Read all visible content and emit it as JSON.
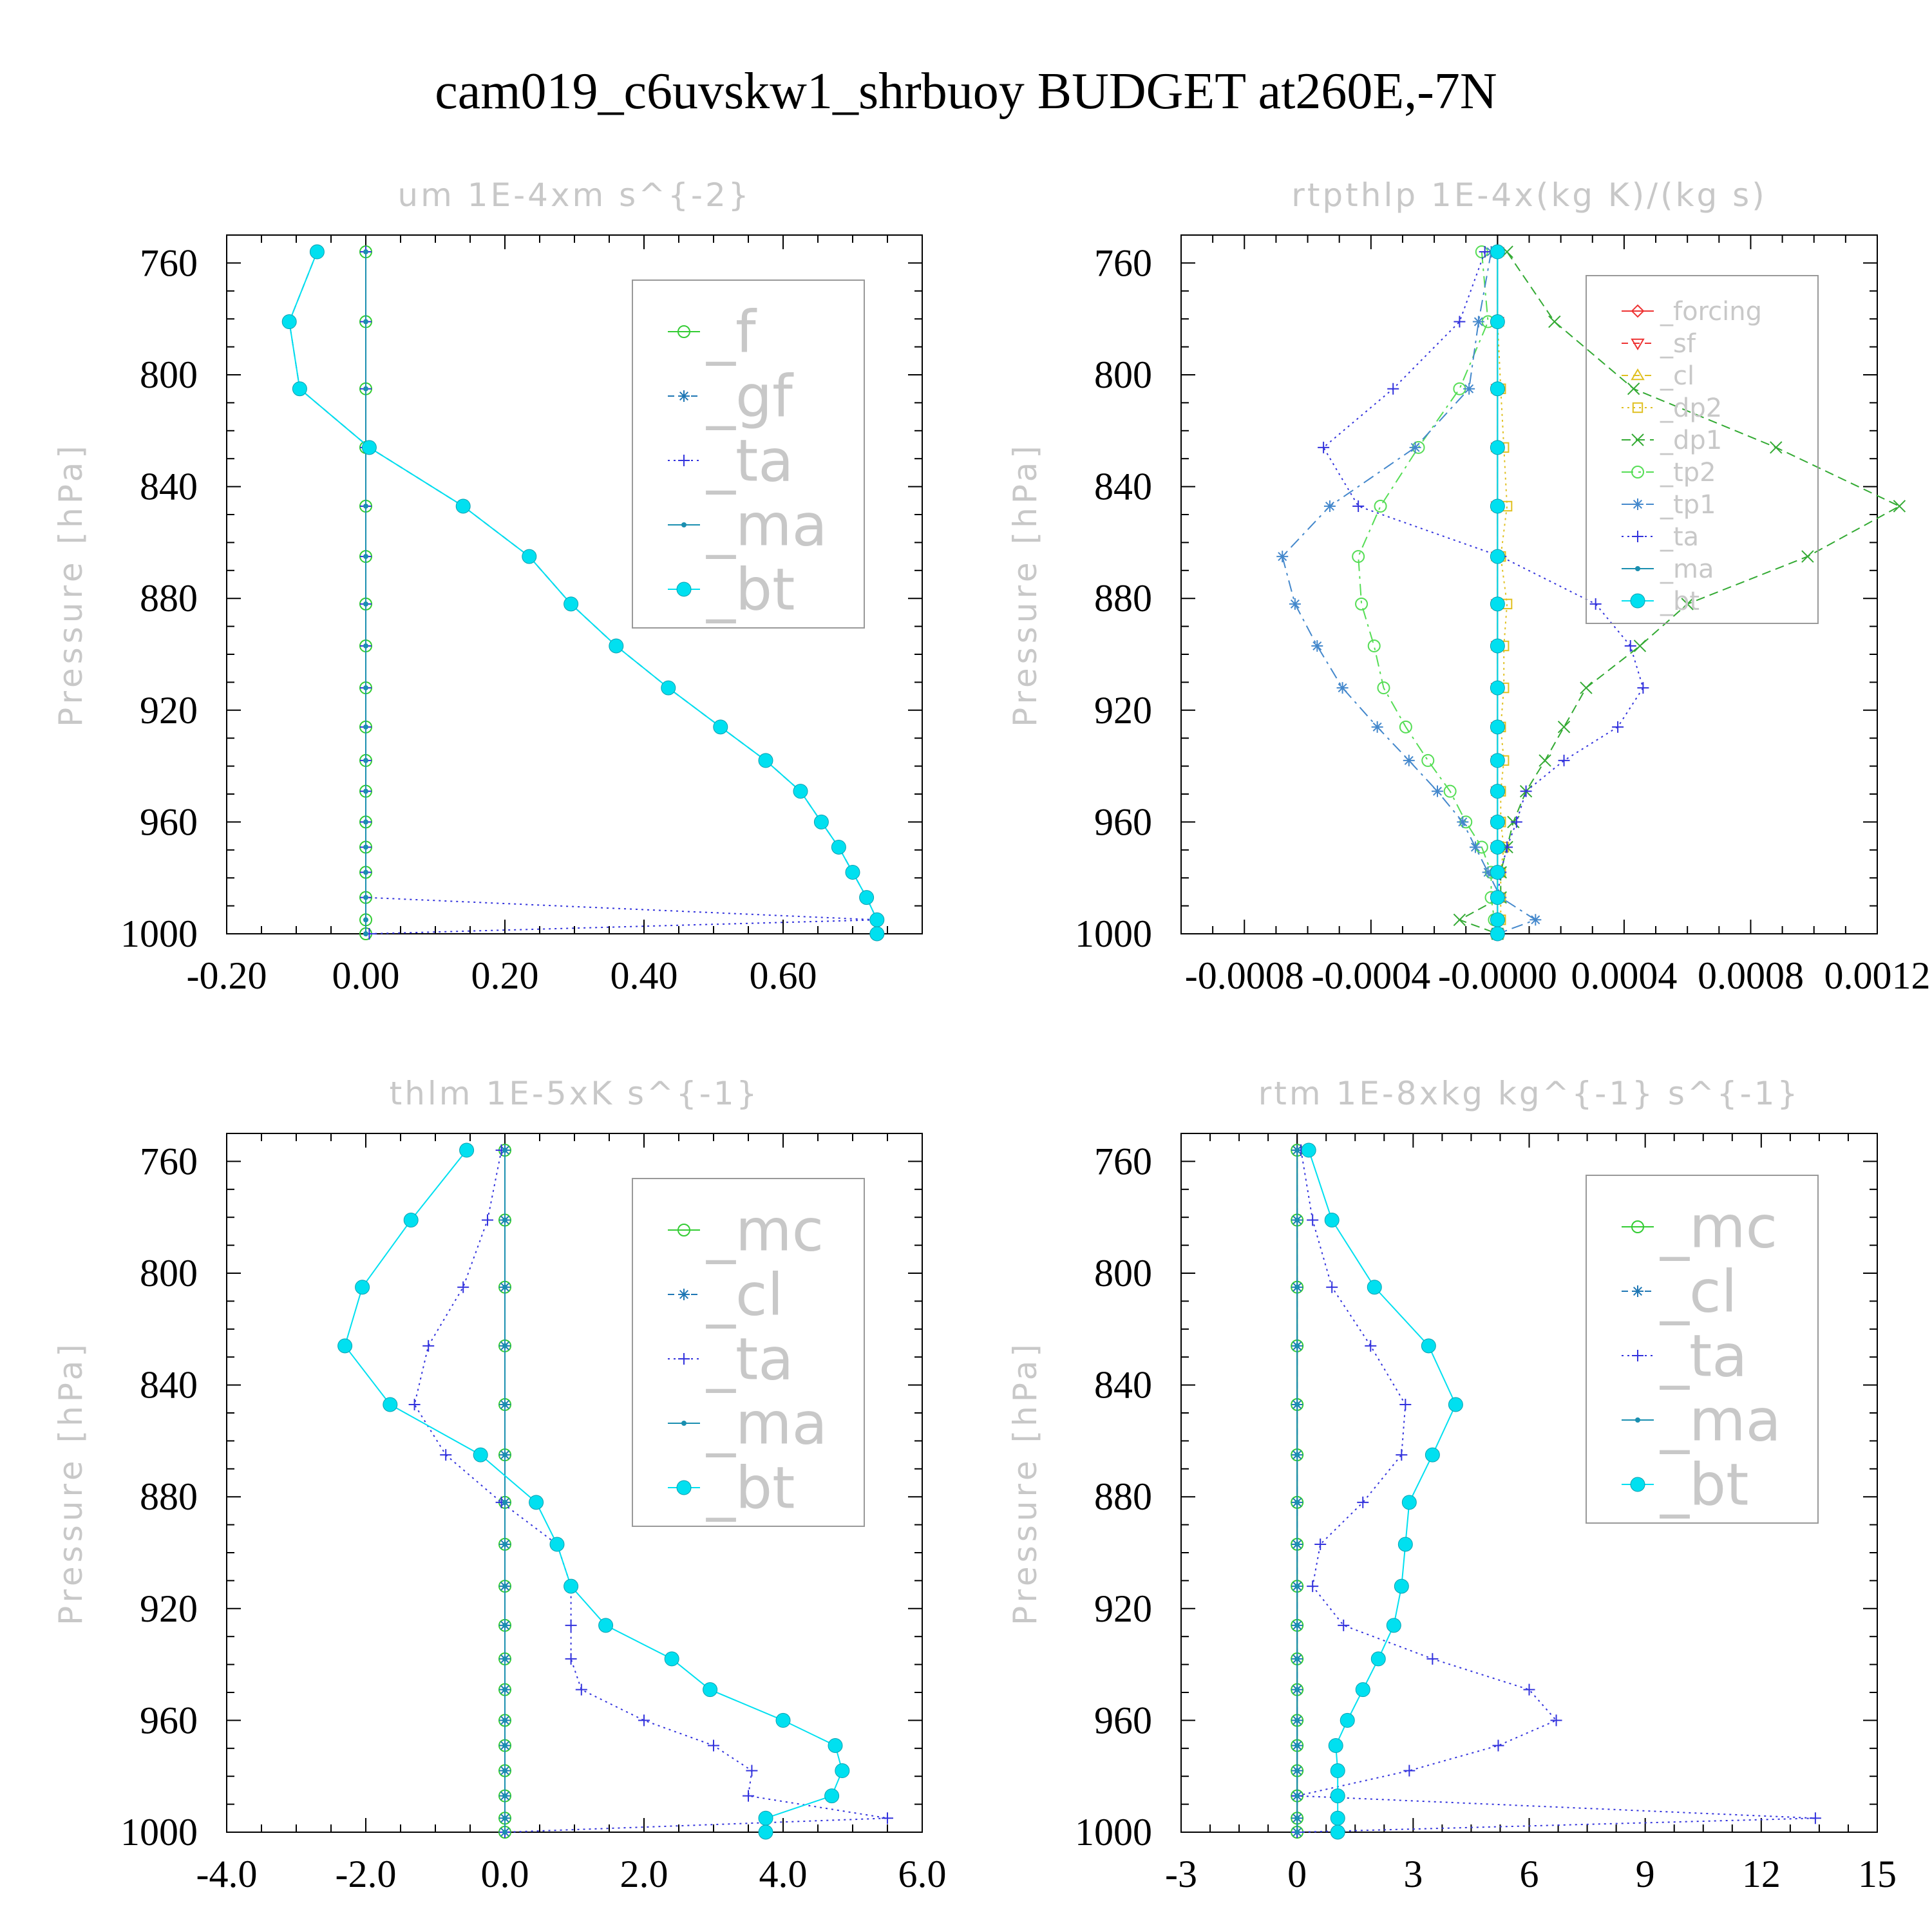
{
  "title": "cam019_c6uvskw1_shrbuoy  BUDGET at260E,-7N",
  "chart_data": [
    {
      "type": "line",
      "title": "um  1E-4xm s^{-2}",
      "ylabel": "Pressure [hPa]",
      "xlim": [
        -0.2,
        0.8
      ],
      "ylim": [
        1000,
        750
      ],
      "xticks": [
        -0.2,
        0.0,
        0.2,
        0.4,
        0.6
      ],
      "xtick_labels": [
        "-0.20",
        "0.00",
        "0.20",
        "0.40",
        "0.60"
      ],
      "yticks": [
        760,
        800,
        840,
        880,
        920,
        960,
        1000
      ],
      "ytick_labels": [
        "760",
        "800",
        "840",
        "880",
        "920",
        "960",
        "1000"
      ],
      "legend_position": "top-right",
      "legend_font_size": 90,
      "pressure": [
        756,
        781,
        805,
        826,
        847,
        865,
        882,
        897,
        912,
        926,
        938,
        949,
        960,
        969,
        978,
        987,
        995,
        1000
      ],
      "series": [
        {
          "name": "_f",
          "color": "#33cc33",
          "marker": "circle-open",
          "dash": "none",
          "values": [
            0,
            0,
            0,
            0,
            0,
            0,
            0,
            0,
            0,
            0,
            0,
            0,
            0,
            0,
            0,
            0,
            0,
            0
          ]
        },
        {
          "name": "_gf",
          "color": "#1f77b4",
          "marker": "star",
          "dash": "10,8",
          "values": [
            -0.07,
            -0.11,
            -0.095,
            0.005,
            0.14,
            0.235,
            0.295,
            0.36,
            0.435,
            0.51,
            0.575,
            0.625,
            0.655,
            0.68,
            0.7,
            0.72,
            0.735,
            0.735
          ]
        },
        {
          "name": "_ta",
          "color": "#3333dd",
          "marker": "plus",
          "dash": "3,6",
          "values": [
            0,
            0,
            0,
            0,
            0,
            0,
            0,
            0,
            0,
            0,
            0,
            0,
            0,
            0,
            0,
            0,
            0.735,
            0.005
          ]
        },
        {
          "name": "_ma",
          "color": "#1a8fb0",
          "marker": "dot",
          "dash": "none",
          "values": [
            0,
            0,
            0,
            0,
            0,
            0,
            0,
            0,
            0,
            0,
            0,
            0,
            0,
            0,
            0,
            0,
            0,
            0
          ]
        },
        {
          "name": "_bt",
          "color": "#00e0f0",
          "marker": "filled",
          "dash": "none",
          "values": [
            -0.07,
            -0.11,
            -0.095,
            0.005,
            0.14,
            0.235,
            0.295,
            0.36,
            0.435,
            0.51,
            0.575,
            0.625,
            0.655,
            0.68,
            0.7,
            0.72,
            0.735,
            0.735
          ]
        }
      ]
    },
    {
      "type": "line",
      "title": "rtpthlp  1E-4x(kg K)/(kg s)",
      "ylabel": "Pressure [hPa]",
      "xlim": [
        -0.001,
        0.0012
      ],
      "ylim": [
        1000,
        750
      ],
      "xticks": [
        -0.0008,
        -0.0004,
        0.0,
        0.0004,
        0.0008,
        0.0012
      ],
      "xtick_labels": [
        "-0.0008",
        "-0.0004",
        "-0.0000",
        "0.0004",
        "0.0008",
        "0.0012"
      ],
      "yticks": [
        760,
        800,
        840,
        880,
        920,
        960,
        1000
      ],
      "ytick_labels": [
        "760",
        "800",
        "840",
        "880",
        "920",
        "960",
        "1000"
      ],
      "legend_position": "top-right",
      "legend_font_size": 40,
      "pressure": [
        756,
        781,
        805,
        826,
        847,
        865,
        882,
        897,
        912,
        926,
        938,
        949,
        960,
        969,
        978,
        987,
        995,
        1000
      ],
      "series": [
        {
          "name": "_forcing",
          "color": "#ee3333",
          "marker": "diamond-open",
          "dash": "none",
          "values": [
            0,
            0,
            0,
            0,
            0,
            0,
            0,
            0,
            0,
            0,
            0,
            0,
            0,
            0,
            0,
            0,
            0,
            0
          ]
        },
        {
          "name": "_sf",
          "color": "#ee3333",
          "marker": "triangle-down",
          "dash": "10,8",
          "values": [
            0,
            0,
            0,
            0,
            0,
            0,
            0,
            0,
            0,
            0,
            0,
            0,
            0,
            0,
            0,
            0,
            0,
            0
          ]
        },
        {
          "name": "_cl",
          "color": "#e0c020",
          "marker": "triangle-up",
          "dash": "10,8",
          "values": [
            0,
            0,
            0,
            0,
            0,
            0,
            0,
            0,
            0,
            0,
            0,
            0,
            0,
            0,
            0,
            0,
            0,
            0
          ]
        },
        {
          "name": "_dp2",
          "color": "#e0c020",
          "marker": "square-open",
          "dash": "3,6",
          "values": [
            0,
            0,
            1e-05,
            2e-05,
            3e-05,
            1e-05,
            3e-05,
            2e-05,
            2e-05,
            1e-05,
            2e-05,
            1e-05,
            1e-05,
            2e-05,
            1e-05,
            1e-05,
            1e-05,
            0
          ]
        },
        {
          "name": "_dp1",
          "color": "#33aa33",
          "marker": "x",
          "dash": "14,8",
          "values": [
            3e-05,
            0.00018,
            0.00043,
            0.00088,
            0.00127,
            0.00098,
            0.0006,
            0.00045,
            0.00028,
            0.00021,
            0.00015,
            9e-05,
            5e-05,
            3e-05,
            1e-05,
            1e-05,
            -0.00012,
            0
          ]
        },
        {
          "name": "_tp2",
          "color": "#55dd55",
          "marker": "circle-open",
          "dash": "18,8,4,8",
          "values": [
            -5e-05,
            -3e-05,
            -0.00012,
            -0.00025,
            -0.00037,
            -0.00044,
            -0.00043,
            -0.00039,
            -0.00036,
            -0.00029,
            -0.00022,
            -0.00015,
            -0.0001,
            -5e-05,
            -2e-05,
            -2e-05,
            -1e-05,
            0
          ]
        },
        {
          "name": "_tp1",
          "color": "#4488cc",
          "marker": "star",
          "dash": "18,8,4,8",
          "values": [
            -2e-05,
            -6e-05,
            -9e-05,
            -0.00026,
            -0.00053,
            -0.00068,
            -0.00064,
            -0.00057,
            -0.00049,
            -0.00038,
            -0.00028,
            -0.00019,
            -0.00011,
            -7e-05,
            -3e-05,
            1e-05,
            0.00012,
            0
          ]
        },
        {
          "name": "_ta",
          "color": "#3333dd",
          "marker": "plus",
          "dash": "3,6",
          "values": [
            -4e-05,
            -0.00012,
            -0.00033,
            -0.00055,
            -0.00044,
            1e-05,
            0.00031,
            0.00042,
            0.00046,
            0.00038,
            0.00021,
            9e-05,
            6e-05,
            3e-05,
            1e-05,
            0,
            0,
            0
          ]
        },
        {
          "name": "_ma",
          "color": "#1a8fb0",
          "marker": "dot",
          "dash": "none",
          "values": [
            0,
            0,
            0,
            0,
            0,
            0,
            0,
            0,
            0,
            0,
            0,
            0,
            0,
            0,
            0,
            0,
            0,
            0
          ]
        },
        {
          "name": "_bt",
          "color": "#00e0f0",
          "marker": "filled",
          "dash": "none",
          "values": [
            0,
            0,
            0,
            0,
            0,
            0,
            0,
            0,
            0,
            0,
            0,
            0,
            0,
            0,
            0,
            0,
            0,
            0
          ]
        }
      ]
    },
    {
      "type": "line",
      "title": "thlm  1E-5xK s^{-1}",
      "ylabel": "Pressure [hPa]",
      "xlim": [
        -4.0,
        6.0
      ],
      "ylim": [
        1000,
        750
      ],
      "xticks": [
        -4,
        -2,
        0,
        2,
        4,
        6
      ],
      "xtick_labels": [
        "-4.0",
        "-2.0",
        "0.0",
        "2.0",
        "4.0",
        "6.0"
      ],
      "yticks": [
        760,
        800,
        840,
        880,
        920,
        960,
        1000
      ],
      "ytick_labels": [
        "760",
        "800",
        "840",
        "880",
        "920",
        "960",
        "1000"
      ],
      "legend_position": "top-right",
      "legend_font_size": 90,
      "pressure": [
        756,
        781,
        805,
        826,
        847,
        865,
        882,
        897,
        912,
        926,
        938,
        949,
        960,
        969,
        978,
        987,
        995,
        1000
      ],
      "series": [
        {
          "name": "_mc",
          "color": "#33cc33",
          "marker": "circle-open",
          "dash": "none",
          "values": [
            0,
            0,
            0,
            0,
            0,
            0,
            0,
            0,
            0,
            0,
            0,
            0,
            0,
            0,
            0,
            0,
            0,
            0
          ]
        },
        {
          "name": "_cl",
          "color": "#1f77b4",
          "marker": "star",
          "dash": "10,8",
          "values": [
            0,
            0,
            0,
            0,
            0,
            0,
            0,
            0,
            0,
            0,
            0,
            0,
            0,
            0,
            0,
            0,
            0,
            0
          ]
        },
        {
          "name": "_ta",
          "color": "#3333dd",
          "marker": "plus",
          "dash": "3,6",
          "values": [
            -0.05,
            -0.25,
            -0.6,
            -1.1,
            -1.3,
            -0.85,
            -0.05,
            0.75,
            0.95,
            0.95,
            0.95,
            1.1,
            2.0,
            3.0,
            3.55,
            3.5,
            5.5,
            0
          ]
        },
        {
          "name": "_ma",
          "color": "#1a8fb0",
          "marker": "dot",
          "dash": "none",
          "values": [
            0,
            0,
            0,
            0,
            0,
            0,
            0,
            0,
            0,
            0,
            0,
            0,
            0,
            0,
            0,
            0,
            0,
            0
          ]
        },
        {
          "name": "_bt",
          "color": "#00e0f0",
          "marker": "filled",
          "dash": "none",
          "values": [
            -0.55,
            -1.35,
            -2.05,
            -2.3,
            -1.65,
            -0.35,
            0.45,
            0.75,
            0.95,
            1.45,
            2.4,
            2.95,
            4.0,
            4.75,
            4.85,
            4.7,
            3.75,
            3.75
          ]
        }
      ]
    },
    {
      "type": "line",
      "title": "rtm  1E-8xkg kg^{-1} s^{-1}",
      "ylabel": "Pressure [hPa]",
      "xlim": [
        -3,
        15
      ],
      "ylim": [
        1000,
        750
      ],
      "xticks": [
        -3,
        0,
        3,
        6,
        9,
        12,
        15
      ],
      "xtick_labels": [
        "-3",
        "0",
        "3",
        "6",
        "9",
        "12",
        "15"
      ],
      "yticks": [
        760,
        800,
        840,
        880,
        920,
        960,
        1000
      ],
      "ytick_labels": [
        "760",
        "800",
        "840",
        "880",
        "920",
        "960",
        "1000"
      ],
      "legend_position": "top-right",
      "legend_font_size": 90,
      "pressure": [
        756,
        781,
        805,
        826,
        847,
        865,
        882,
        897,
        912,
        926,
        938,
        949,
        960,
        969,
        978,
        987,
        995,
        1000
      ],
      "series": [
        {
          "name": "_mc",
          "color": "#33cc33",
          "marker": "circle-open",
          "dash": "none",
          "values": [
            0,
            0,
            0,
            0,
            0,
            0,
            0,
            0,
            0,
            0,
            0,
            0,
            0,
            0,
            0,
            0,
            0,
            0
          ]
        },
        {
          "name": "_cl",
          "color": "#1f77b4",
          "marker": "star",
          "dash": "10,8",
          "values": [
            0,
            0,
            0,
            0,
            0,
            0,
            0,
            0,
            0,
            0,
            0,
            0,
            0,
            0,
            0,
            0,
            0,
            0
          ]
        },
        {
          "name": "_ta",
          "color": "#3333dd",
          "marker": "plus",
          "dash": "3,6",
          "values": [
            0.1,
            0.4,
            0.9,
            1.9,
            2.8,
            2.7,
            1.7,
            0.6,
            0.4,
            1.2,
            3.5,
            6.0,
            6.7,
            5.2,
            2.9,
            0,
            13.4,
            0
          ]
        },
        {
          "name": "_ma",
          "color": "#1a8fb0",
          "marker": "dot",
          "dash": "none",
          "values": [
            0,
            0,
            0,
            0,
            0,
            0,
            0,
            0,
            0,
            0,
            0,
            0,
            0,
            0,
            0,
            0,
            0,
            0
          ]
        },
        {
          "name": "_bt",
          "color": "#00e0f0",
          "marker": "filled",
          "dash": "none",
          "values": [
            0.3,
            0.9,
            2.0,
            3.4,
            4.1,
            3.5,
            2.9,
            2.8,
            2.7,
            2.5,
            2.1,
            1.7,
            1.3,
            1.0,
            1.05,
            1.05,
            1.05,
            1.05
          ]
        }
      ]
    }
  ]
}
